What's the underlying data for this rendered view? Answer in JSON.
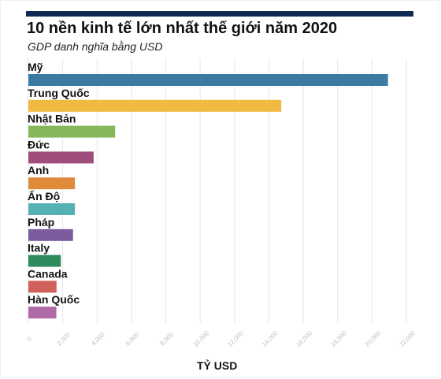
{
  "header": {
    "title": "10 nền kinh tế lớn nhất thế giới năm 2020",
    "subtitle": "GDP danh nghĩa bằng USD"
  },
  "chart_data": {
    "type": "bar",
    "orientation": "horizontal",
    "title": "10 nền kinh tế lớn nhất thế giới năm 2020",
    "subtitle": "GDP danh nghĩa bằng USD",
    "xlabel": "TỶ USD",
    "ylabel": "",
    "xlim": [
      0,
      22000
    ],
    "x_ticks": [
      "0",
      "2,000",
      "4,000",
      "6,000",
      "8,000",
      "10,000",
      "12,000",
      "14,000",
      "16,000",
      "18,000",
      "20,000",
      "22,000"
    ],
    "categories": [
      "Mỹ",
      "Trung Quốc",
      "Nhật Bản",
      "Đức",
      "Anh",
      "Ấn Độ",
      "Pháp",
      "Italy",
      "Canada",
      "Hàn Quốc"
    ],
    "values": [
      20930,
      14720,
      5050,
      3800,
      2710,
      2710,
      2600,
      1890,
      1640,
      1630
    ],
    "colors": [
      "#3a7aa3",
      "#f0b942",
      "#86b75b",
      "#a14d7c",
      "#e08a3b",
      "#55b1b3",
      "#7a5c9f",
      "#2f8b5e",
      "#d0605a",
      "#b06aa6"
    ],
    "grid": "vertical"
  }
}
